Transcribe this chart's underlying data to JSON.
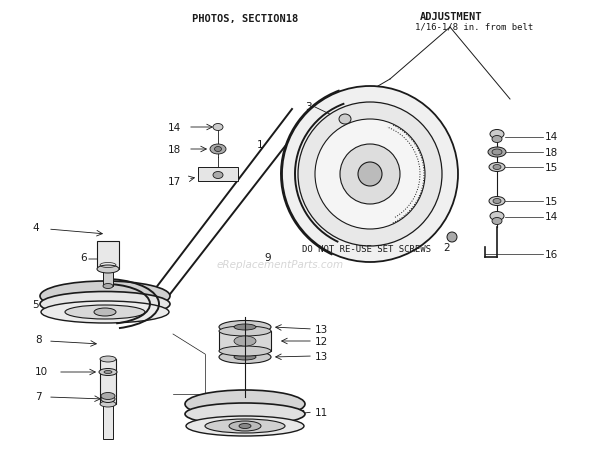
{
  "bg_color": "#ffffff",
  "title": "PHOTOS, SECTION18",
  "adjustment_line1": "ADJUSTMENT",
  "adjustment_line2": "1/16-1/8 in. from belt",
  "watermark": "eReplacementParts.com",
  "do_not_reuse": "DO NOT RE-USE SET SCREWS",
  "black": "#1a1a1a",
  "gray1": "#cccccc",
  "gray2": "#e8e8e8",
  "gray3": "#aaaaaa"
}
